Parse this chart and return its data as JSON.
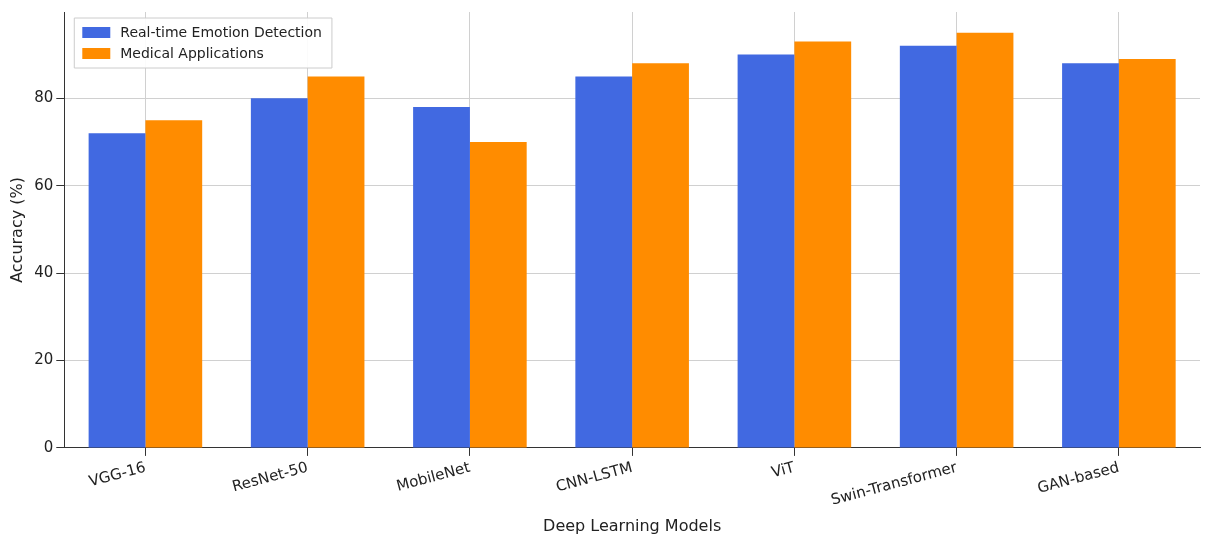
{
  "chart_data": {
    "type": "bar",
    "xlabel": "Deep Learning Models",
    "ylabel": "Accuracy (%)",
    "categories": [
      "VGG-16",
      "ResNet-50",
      "MobileNet",
      "CNN-LSTM",
      "ViT",
      "Swin-Transformer",
      "GAN-based"
    ],
    "series": [
      {
        "name": "Real-time Emotion Detection",
        "color": "#4169e1",
        "values": [
          72,
          80,
          78,
          85,
          90,
          92,
          88
        ]
      },
      {
        "name": "Medical Applications",
        "color": "#ff8c00",
        "values": [
          75,
          85,
          70,
          88,
          93,
          95,
          89
        ]
      }
    ],
    "ylim": [
      0,
      99.75
    ],
    "yticks": [
      0,
      20,
      40,
      60,
      80
    ],
    "grid": true,
    "legend": "top left"
  }
}
